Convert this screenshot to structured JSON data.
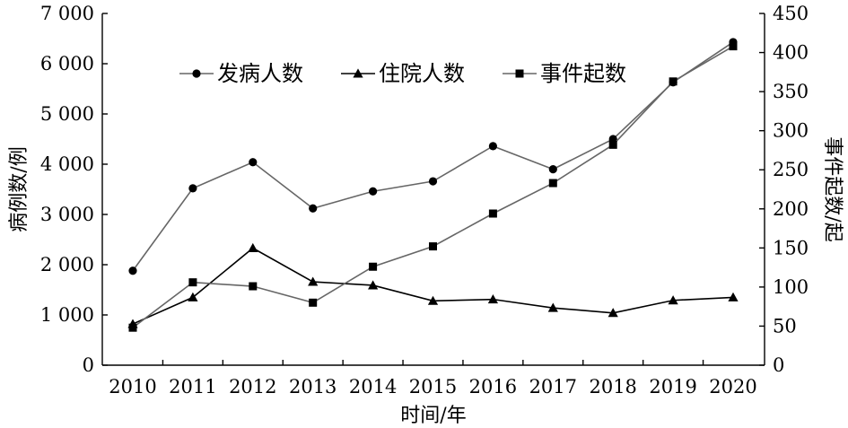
{
  "chart_data": {
    "type": "line",
    "x": [
      "2010",
      "2011",
      "2012",
      "2013",
      "2014",
      "2015",
      "2016",
      "2017",
      "2018",
      "2019",
      "2020"
    ],
    "xlabel": "时间/年",
    "ylabel": "病例数/例",
    "y2label": "事件起数/起",
    "ylim": [
      0,
      7000
    ],
    "y2lim": [
      0,
      450
    ],
    "yticks": [
      "0",
      "1 000",
      "2 000",
      "3 000",
      "4 000",
      "5 000",
      "6 000",
      "7 000"
    ],
    "y2ticks": [
      "0",
      "50",
      "100",
      "150",
      "200",
      "250",
      "300",
      "350",
      "400",
      "450"
    ],
    "legend_position": "top-left",
    "grid": false,
    "series": [
      {
        "name": "发病人数",
        "axis": "left",
        "marker": "circle",
        "color": "#666666",
        "values": [
          1880,
          3520,
          4040,
          3120,
          3460,
          3660,
          4360,
          3900,
          4500,
          5630,
          6430
        ]
      },
      {
        "name": "住院人数",
        "axis": "left",
        "marker": "triangle",
        "color": "#000000",
        "values": [
          820,
          1350,
          2330,
          1660,
          1590,
          1280,
          1310,
          1140,
          1040,
          1290,
          1350
        ]
      },
      {
        "name": "事件起数",
        "axis": "right",
        "marker": "square",
        "color": "#666666",
        "values": [
          48,
          106,
          101,
          80,
          126,
          152,
          194,
          233,
          282,
          363,
          408
        ]
      }
    ]
  }
}
